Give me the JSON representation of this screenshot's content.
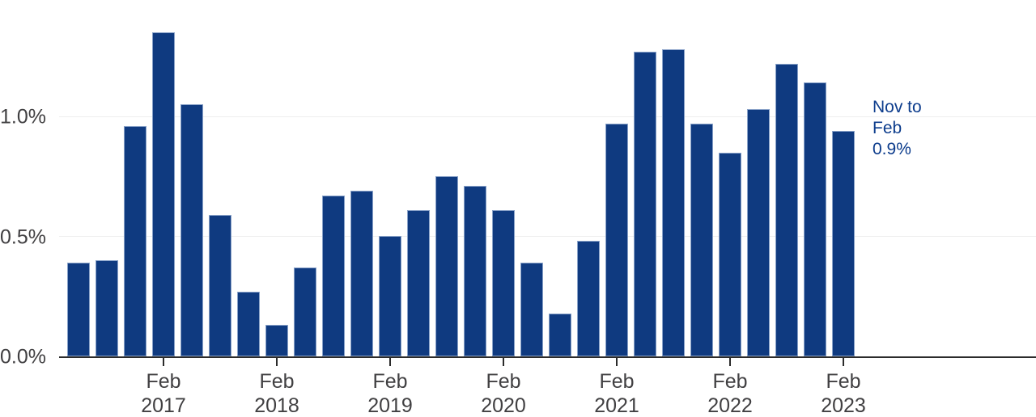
{
  "chart_data": {
    "type": "bar",
    "title": "",
    "unit": "percent",
    "values": [
      0.39,
      0.4,
      0.96,
      1.35,
      1.05,
      0.59,
      0.27,
      0.13,
      0.37,
      0.67,
      0.69,
      0.5,
      0.61,
      0.75,
      0.71,
      0.61,
      0.39,
      0.18,
      0.48,
      0.97,
      1.27,
      1.28,
      0.97,
      0.85,
      1.03,
      1.22,
      1.14,
      0.94
    ],
    "x_ticks": [
      {
        "bar_index": 3,
        "line1": "Feb",
        "line2": "2017"
      },
      {
        "bar_index": 7,
        "line1": "Feb",
        "line2": "2018"
      },
      {
        "bar_index": 11,
        "line1": "Feb",
        "line2": "2019"
      },
      {
        "bar_index": 15,
        "line1": "Feb",
        "line2": "2020"
      },
      {
        "bar_index": 19,
        "line1": "Feb",
        "line2": "2021"
      },
      {
        "bar_index": 23,
        "line1": "Feb",
        "line2": "2022"
      },
      {
        "bar_index": 27,
        "line1": "Feb",
        "line2": "2023"
      }
    ],
    "y_ticks": [
      {
        "label": "0.0%",
        "value": 0.0
      },
      {
        "label": "0.5%",
        "value": 0.5
      },
      {
        "label": "1.0%",
        "value": 1.0
      }
    ],
    "ylim": [
      0,
      1.5
    ],
    "grid": "horizontal",
    "legend": "none",
    "annotation": {
      "lines": [
        "Nov to",
        "Feb",
        "0.9%"
      ]
    },
    "colors": {
      "bar": "#0f3a80",
      "annotation": "#0c3c8c",
      "axis": "#2b2b2b",
      "grid": "#eeeeee",
      "tick_text": "#414042"
    }
  }
}
